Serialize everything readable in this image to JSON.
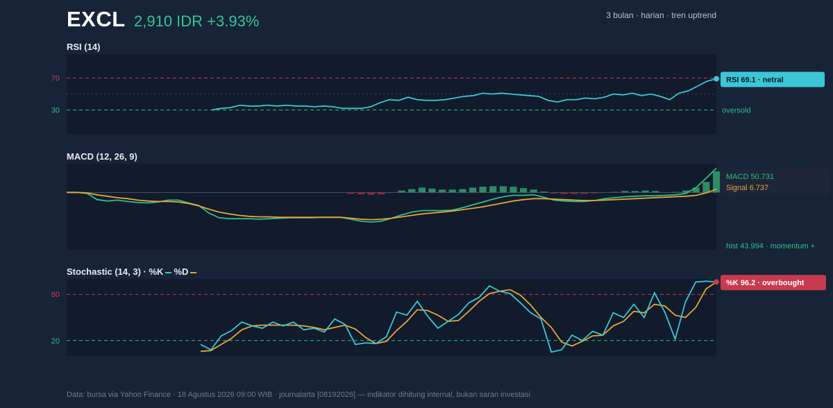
{
  "header": {
    "ticker": "EXCL",
    "price": "2,910 IDR +3.93%",
    "meta": "3 bulan · harian · tren uptrend"
  },
  "colors": {
    "background": "#172337",
    "panel": "#111b2c",
    "rsi_line": "#3cc6d6",
    "macd_line": "#2fbf86",
    "signal_line": "#e8a33a",
    "hist_positive": "#2e8a67",
    "hist_negative": "#8a2b3d",
    "overbought": "#c83a4e",
    "oversold": "#2fbf86",
    "stoch_k": "#3cc6d6",
    "stoch_d": "#e8a33a"
  },
  "rsi": {
    "title": "RSI (14)",
    "tag": "RSI 69.1 · netral",
    "oversold_label": "oversold"
  },
  "macd": {
    "title": "MACD (12, 26, 9)",
    "macd_label": "MACD 50.731",
    "signal_label": "Signal 6.737",
    "hist_label": "hist 43.994 · momentum +"
  },
  "stoch": {
    "title": "Stochastic (14, 3) · %K",
    "d_label": "%D",
    "tag": "%K 96.2 · overbought"
  },
  "footer": "Data: bursa via Yahoo Finance · 18 Agustus 2026 09:00 WIB · journalarta [08192026] — indikator dihitung internal, bukan saran investasi",
  "chart_data": [
    {
      "type": "line",
      "title": "RSI (14)",
      "ylim": [
        0,
        100
      ],
      "ticks": [
        70,
        30
      ],
      "thresholds": {
        "overbought": 70,
        "oversold": 30,
        "mid": 50
      },
      "series": [
        {
          "values": [
            30,
            32,
            33,
            36,
            35,
            35,
            36,
            35,
            36,
            35,
            35,
            34,
            35,
            34,
            32,
            32,
            32,
            34,
            39,
            43,
            42,
            46,
            43,
            42,
            42,
            43,
            45,
            47,
            48,
            51,
            50,
            51,
            50,
            49,
            48,
            47,
            42,
            40,
            43,
            43,
            45,
            44,
            46,
            50,
            49,
            51,
            48,
            50,
            47,
            43,
            51,
            54,
            60,
            66,
            69.1
          ]
        }
      ]
    },
    {
      "type": "line",
      "title": "MACD (12, 26, 9)",
      "ylim": [
        -120,
        60
      ],
      "series": [
        {
          "name": "MACD",
          "values": [
            0,
            0,
            -2,
            -15,
            -18,
            -16,
            -19,
            -21,
            -22,
            -20,
            -16,
            -16,
            -22,
            -27,
            -43,
            -53,
            -55,
            -55,
            -55,
            -56,
            -55,
            -54,
            -53,
            -53,
            -53,
            -52,
            -52,
            -52,
            -56,
            -60,
            -62,
            -60,
            -54,
            -47,
            -41,
            -38,
            -38,
            -38,
            -37,
            -32,
            -26,
            -20,
            -14,
            -9,
            -6,
            -6,
            -5,
            -10,
            -16,
            -18,
            -19,
            -19,
            -17,
            -13,
            -11,
            -9,
            -8,
            -7,
            -7,
            -6,
            -5,
            -2,
            10,
            30,
            50.731
          ]
        },
        {
          "name": "Signal",
          "values": [
            0,
            0,
            -1,
            -5,
            -8,
            -11,
            -13,
            -16,
            -18,
            -19,
            -19,
            -20,
            -23,
            -28,
            -35,
            -41,
            -45,
            -48,
            -50,
            -51,
            -51,
            -52,
            -52,
            -52,
            -52,
            -52,
            -52,
            -52,
            -54,
            -56,
            -57,
            -56,
            -54,
            -51,
            -48,
            -45,
            -43,
            -41,
            -39,
            -36,
            -33,
            -30,
            -26,
            -22,
            -18,
            -15,
            -13,
            -13,
            -14,
            -15,
            -16,
            -17,
            -17,
            -16,
            -15,
            -14,
            -13,
            -12,
            -11,
            -10,
            -9,
            -8,
            -6,
            -1,
            6.737
          ]
        },
        {
          "name": "hist",
          "values": [
            0,
            0,
            0,
            0,
            0,
            0,
            0,
            0,
            0,
            0,
            0,
            0,
            0,
            0,
            0,
            0,
            0,
            0,
            0,
            0,
            0,
            0,
            0,
            0,
            0,
            0,
            0,
            0,
            -3,
            -4,
            -5,
            -4,
            0,
            4,
            7,
            10,
            8,
            6,
            6,
            7,
            10,
            12,
            13,
            13,
            12,
            9,
            6,
            2,
            -2,
            -3,
            -3,
            -3,
            -2,
            0,
            1,
            3,
            3,
            4,
            3,
            0,
            1,
            4,
            10,
            22,
            43.994
          ]
        }
      ]
    },
    {
      "type": "line",
      "title": "Stochastic (14, 3)",
      "ylim": [
        0,
        100
      ],
      "ticks": [
        80,
        20
      ],
      "thresholds": {
        "overbought": 80,
        "oversold": 20
      },
      "series": [
        {
          "name": "%K",
          "values": [
            15,
            8,
            26,
            33,
            44,
            39,
            36,
            44,
            39,
            44,
            34,
            36,
            31,
            48,
            41,
            15,
            17,
            16,
            25,
            57,
            53,
            71,
            52,
            36,
            45,
            54,
            69,
            76,
            91,
            84,
            81,
            69,
            56,
            48,
            5,
            8,
            27,
            20,
            32,
            27,
            56,
            50,
            67,
            50,
            82,
            57,
            22,
            70,
            96,
            97,
            96.2
          ]
        },
        {
          "name": "%D",
          "values": [
            6,
            7,
            15,
            23,
            34,
            39,
            40,
            40,
            40,
            40,
            39,
            37,
            34,
            37,
            40,
            35,
            24,
            16,
            19,
            33,
            45,
            60,
            59,
            53,
            45,
            46,
            58,
            71,
            81,
            84,
            86,
            79,
            66,
            50,
            37,
            18,
            13,
            19,
            26,
            27,
            39,
            45,
            58,
            56,
            67,
            65,
            53,
            50,
            63,
            87,
            96
          ]
        }
      ]
    }
  ]
}
